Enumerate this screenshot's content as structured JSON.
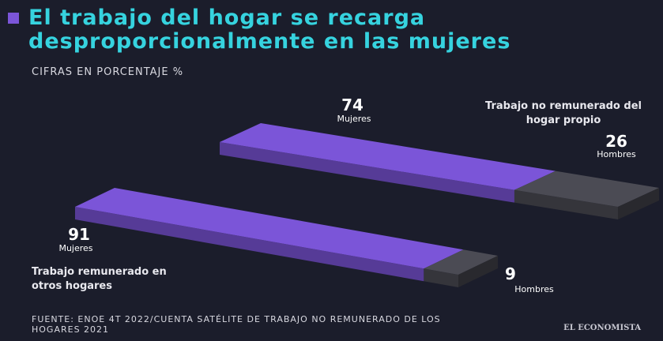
{
  "chart_data": {
    "type": "bar",
    "title": "El trabajo del hogar se recarga desproporcionalmente en las mujeres",
    "subtitle": "CIFRAS EN PORCENTAJE %",
    "categories": [
      "Trabajo no remunerado del hogar propio",
      "Trabajo remunerado en otros hogares"
    ],
    "series": [
      {
        "name": "Mujeres",
        "color": "#7b55d8",
        "values": [
          74,
          91
        ]
      },
      {
        "name": "Hombres",
        "color": "#4b4b54",
        "values": [
          26,
          9
        ]
      }
    ],
    "source": "FUENTE: ENOE 4T 2022/CUENTA SATÉLITE DE TRABAJO NO REMUNERADO DE LOS HOGARES 2021",
    "brand": "EL ECONOMISTA"
  }
}
